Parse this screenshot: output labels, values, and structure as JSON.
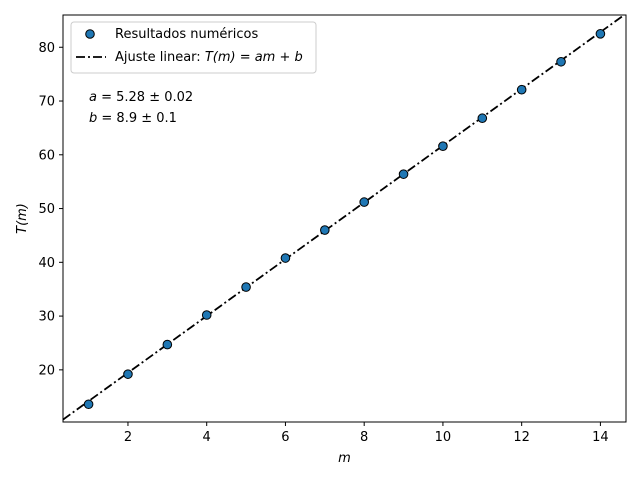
{
  "chart_data": {
    "type": "scatter",
    "xlabel": "m",
    "ylabel": "T(m)",
    "xlim": [
      0.35,
      14.65
    ],
    "ylim": [
      10.3,
      86.0
    ],
    "xticks": [
      2,
      4,
      6,
      8,
      10,
      12,
      14
    ],
    "yticks": [
      20,
      30,
      40,
      50,
      60,
      70,
      80
    ],
    "grid": false,
    "legend_position": "top-left",
    "series": [
      {
        "name": "Resultados numéricos",
        "kind": "scatter",
        "color": "#1f77b4",
        "edge_color": "#000000",
        "x": [
          1,
          2,
          3,
          4,
          5,
          6,
          7,
          8,
          9,
          10,
          11,
          12,
          13,
          14
        ],
        "y": [
          13.6,
          19.2,
          24.7,
          30.2,
          35.4,
          40.8,
          46.0,
          51.2,
          56.4,
          61.6,
          66.8,
          72.1,
          77.3,
          82.5
        ]
      },
      {
        "name_prefix": "Ajuste linear: ",
        "name_math": "T(m) = am + b",
        "kind": "line",
        "style": "dash-dot",
        "color": "#000000",
        "slope": 5.28,
        "intercept": 8.9
      }
    ],
    "annotations": [
      {
        "var": "a",
        "rest": " = 5.28 ± 0.02"
      },
      {
        "var": "b",
        "rest": " = 8.9 ± 0.1"
      }
    ]
  }
}
